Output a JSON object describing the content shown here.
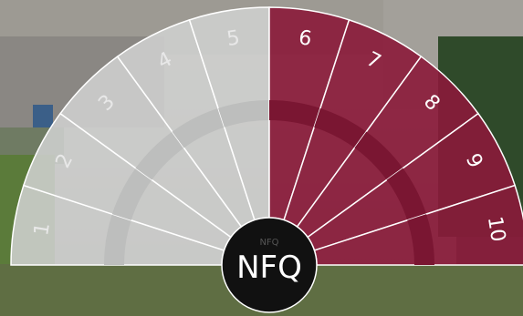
{
  "center": {
    "title": "NFQ",
    "small_label": "NFQ"
  },
  "levels": [
    {
      "label": "1",
      "color": "#cfd0cf"
    },
    {
      "label": "2",
      "color": "#cfd0cf"
    },
    {
      "label": "3",
      "color": "#cfd0cf"
    },
    {
      "label": "4",
      "color": "#cfd0cf"
    },
    {
      "label": "5",
      "color": "#cfd0cf"
    },
    {
      "label": "6",
      "color": "#8b1a3a"
    },
    {
      "label": "7",
      "color": "#8b1a3a"
    },
    {
      "label": "8",
      "color": "#8b1a3a"
    },
    {
      "label": "9",
      "color": "#8b1a3a"
    },
    {
      "label": "10",
      "color": "#8b1a3a"
    }
  ]
}
